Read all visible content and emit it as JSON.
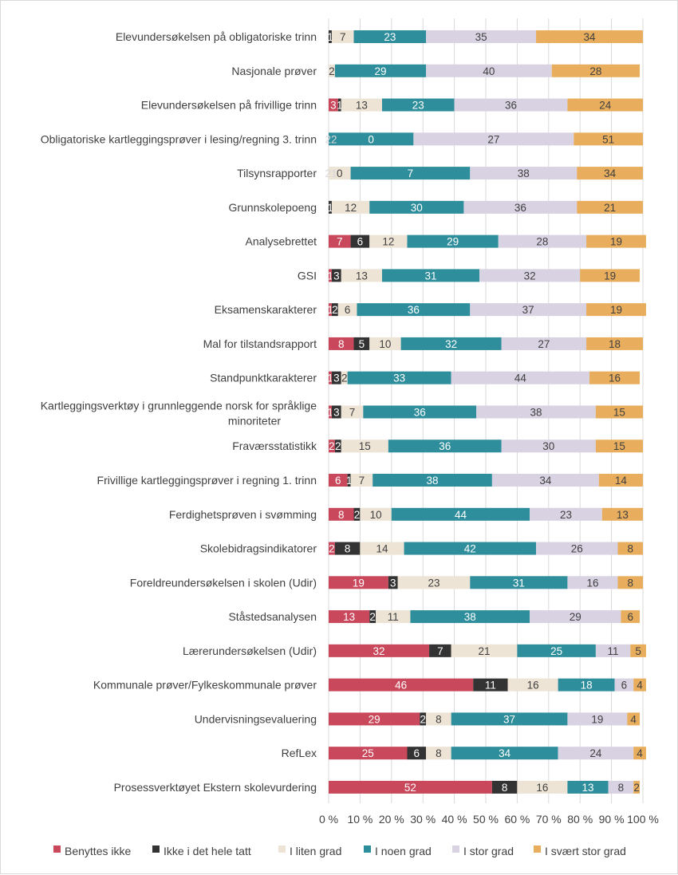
{
  "chart_data": {
    "type": "bar",
    "orientation": "horizontal",
    "stacked": "percent",
    "title": "",
    "xlabel": "",
    "ylabel": "",
    "xlim": [
      0,
      100
    ],
    "x_ticks": [
      "0 %",
      "10 %",
      "20 %",
      "30 %",
      "40 %",
      "50 %",
      "60 %",
      "70 %",
      "80 %",
      "90 %",
      "100 %"
    ],
    "grid": true,
    "legend_position": "bottom",
    "categories": [
      "Elevundersøkelsen på obligatoriske trinn",
      "Nasjonale prøver",
      "Elevundersøkelsen på frivillige trinn",
      "Obligatoriske kartleggingsprøver i lesing/regning 3. trinn",
      "Tilsynsrapporter",
      "Grunnskolepoeng",
      "Analysebrettet",
      "GSI",
      "Eksamenskarakterer",
      "Mal for tilstandsrapport",
      "Standpunktkarakterer",
      [
        "Kartleggingsverktøy i grunnleggende norsk for språklige",
        "minoriteter"
      ],
      "Fraværsstatistikk",
      "Frivillige kartleggingsprøver i regning 1. trinn",
      "Ferdighetsprøven i svømming",
      "Skolebidragsindikatorer",
      "Foreldreundersøkelsen i skolen (Udir)",
      "Ståstedsanalysen",
      "Lærerundersøkelsen (Udir)",
      "Kommunale prøver/Fylkeskommunale prøver",
      "Undervisningsevaluering",
      "RefLex",
      "Prosessverktøyet Ekstern skolevurdering"
    ],
    "series": [
      {
        "name": "Benyttes ikke",
        "color": "#c9485b",
        "label_color": "#ffffff",
        "values": [
          0,
          0,
          3,
          0,
          0,
          0,
          7,
          1,
          1,
          8,
          1,
          1,
          2,
          6,
          8,
          2,
          19,
          13,
          32,
          46,
          29,
          25,
          52
        ]
      },
      {
        "name": "Ikke i det hele tatt",
        "color": "#333333",
        "label_color": "#ffffff",
        "values": [
          1,
          0,
          1,
          0,
          0,
          1,
          6,
          3,
          2,
          5,
          3,
          3,
          2,
          1,
          2,
          8,
          3,
          2,
          7,
          11,
          2,
          6,
          8
        ]
      },
      {
        "name": "I liten grad",
        "color": "#ede4d6",
        "label_color": "#404040",
        "values": [
          7,
          2,
          13,
          0,
          7,
          12,
          12,
          13,
          6,
          10,
          2,
          7,
          15,
          7,
          10,
          14,
          23,
          11,
          21,
          16,
          8,
          8,
          16
        ]
      },
      {
        "name": "I noen grad",
        "color": "#2f8e9c",
        "label_color": "#ffffff",
        "values": [
          23,
          29,
          23,
          27,
          38,
          30,
          29,
          31,
          36,
          32,
          33,
          36,
          36,
          38,
          44,
          42,
          31,
          38,
          25,
          18,
          37,
          34,
          13
        ]
      },
      {
        "name": "I stor grad",
        "color": "#d9d2e2",
        "label_color": "#404040",
        "values": [
          35,
          40,
          36,
          51,
          34,
          36,
          28,
          32,
          37,
          27,
          44,
          38,
          30,
          34,
          23,
          26,
          16,
          29,
          11,
          6,
          19,
          24,
          8
        ]
      },
      {
        "name": "I svært stor grad",
        "color": "#e8ae5e",
        "label_color": "#404040",
        "values": [
          34,
          28,
          24,
          22,
          21,
          21,
          19,
          19,
          19,
          18,
          16,
          15,
          15,
          14,
          13,
          8,
          8,
          6,
          5,
          4,
          4,
          4,
          2
        ]
      }
    ],
    "segment_labels": [
      [
        "1",
        "7",
        "23",
        "35",
        "34"
      ],
      [
        "2",
        "29",
        "40",
        "28"
      ],
      [
        "3",
        "1",
        "13",
        "23",
        "36",
        "24"
      ],
      [
        "0",
        "27",
        "51",
        "22"
      ],
      [
        "0",
        "7",
        "38",
        "34",
        "21"
      ],
      [
        "1",
        "12",
        "30",
        "36",
        "21"
      ],
      [
        "7",
        "6",
        "12",
        "29",
        "28",
        "19"
      ],
      [
        "1",
        "3",
        "13",
        "31",
        "32",
        "19"
      ],
      [
        "1",
        "2",
        "6",
        "36",
        "37",
        "19"
      ],
      [
        "8",
        "5",
        "10",
        "32",
        "27",
        "18"
      ],
      [
        "1",
        "3",
        "2",
        "33",
        "44",
        "16"
      ],
      [
        "1",
        "3",
        "7",
        "36",
        "38",
        "15"
      ],
      [
        "2",
        "2",
        "15",
        "36",
        "30",
        "15"
      ],
      [
        "6",
        "1",
        "7",
        "38",
        "34",
        "14"
      ],
      [
        "8",
        "2",
        "10",
        "44",
        "23",
        "13"
      ],
      [
        "2",
        "8",
        "14",
        "42",
        "26",
        "8"
      ],
      [
        "19",
        "3",
        "23",
        "31",
        "16",
        "8"
      ],
      [
        "13",
        "2",
        "11",
        "38",
        "29",
        "6"
      ],
      [
        "32",
        "7",
        "21",
        "25",
        "11",
        "5"
      ],
      [
        "46",
        "11",
        "16",
        "18",
        "6",
        "4"
      ],
      [
        "29",
        "2",
        "8",
        "37",
        "19",
        "4"
      ],
      [
        "25",
        "6",
        "8",
        "34",
        "24",
        "4"
      ],
      [
        "52",
        "8",
        "16",
        "13",
        "8",
        "2"
      ]
    ]
  }
}
